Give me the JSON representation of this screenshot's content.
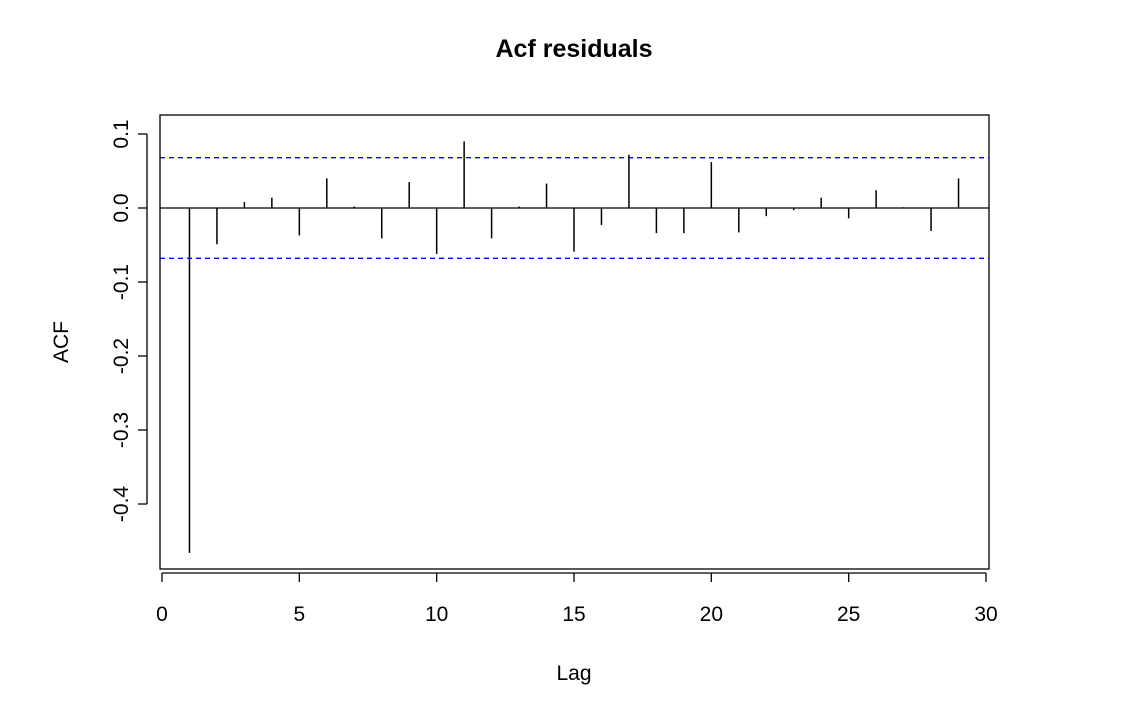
{
  "chart_data": {
    "type": "bar",
    "title": "Acf residuals",
    "xlabel": "Lag",
    "ylabel": "ACF",
    "xlim": [
      0,
      30
    ],
    "ylim": [
      -0.48,
      0.125
    ],
    "x_ticks": [
      0,
      5,
      10,
      15,
      20,
      25,
      30
    ],
    "y_ticks": [
      -0.4,
      -0.3,
      -0.2,
      -0.1,
      0.0,
      0.1
    ],
    "y_tick_labels": [
      "-0.4",
      "-0.3",
      "-0.2",
      "-0.1",
      "0.0",
      "0.1"
    ],
    "confidence_bounds": [
      0.068,
      -0.068
    ],
    "colors": {
      "bars": "#000000",
      "confidence": "#0000ff",
      "axis": "#000000"
    },
    "grid": false,
    "series": [
      {
        "x": [
          1,
          2,
          3,
          4,
          5,
          6,
          7,
          8,
          9,
          10,
          11,
          12,
          13,
          14,
          15,
          16,
          17,
          18,
          19,
          20,
          21,
          22,
          23,
          24,
          25,
          26,
          27,
          28,
          29
        ],
        "values": [
          -0.466,
          -0.049,
          0.008,
          0.014,
          -0.037,
          0.04,
          0.002,
          -0.041,
          0.035,
          -0.062,
          0.09,
          -0.041,
          0.002,
          0.033,
          -0.059,
          -0.023,
          0.072,
          -0.034,
          -0.034,
          0.062,
          -0.033,
          -0.011,
          -0.003,
          0.014,
          -0.014,
          0.024,
          0.001,
          -0.031,
          0.04
        ]
      }
    ]
  }
}
